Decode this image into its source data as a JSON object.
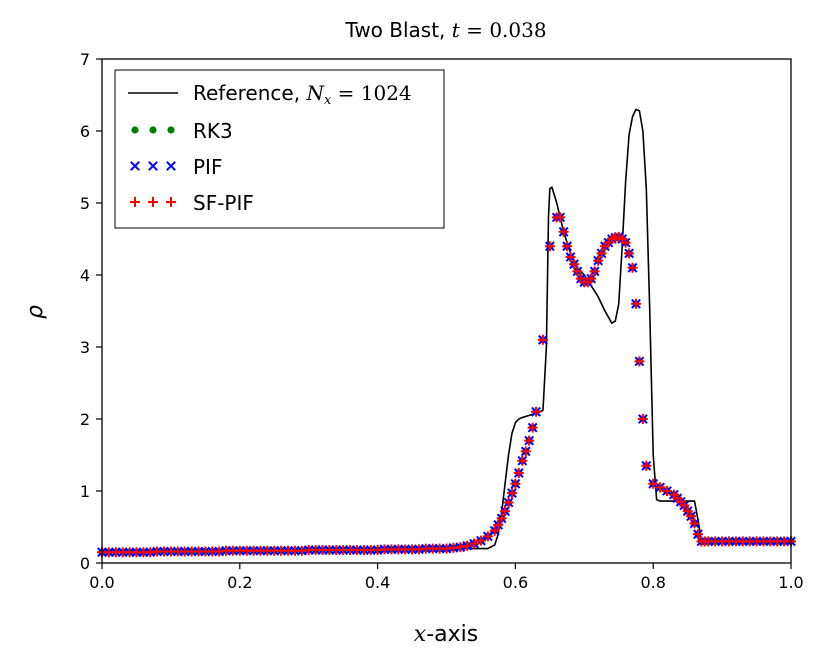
{
  "chart_data": {
    "type": "line",
    "title": {
      "prefix": "Two Blast, ",
      "var": "t",
      "eq": " = ",
      "value": "0.038"
    },
    "xlabel": {
      "var": "x",
      "rest": "-axis"
    },
    "ylabel": "ρ",
    "xlim": [
      0.0,
      1.0
    ],
    "ylim": [
      0,
      7
    ],
    "xticks": [
      0.0,
      0.2,
      0.4,
      0.6,
      0.8,
      1.0
    ],
    "xtick_labels": [
      "0.0",
      "0.2",
      "0.4",
      "0.6",
      "0.8",
      "1.0"
    ],
    "yticks": [
      0,
      1,
      2,
      3,
      4,
      5,
      6,
      7
    ],
    "ytick_labels": [
      "0",
      "1",
      "2",
      "3",
      "4",
      "5",
      "6",
      "7"
    ],
    "legend_position": "top-left",
    "legend": [
      {
        "label": "Reference, ",
        "sub_var": "N",
        "sub": "x",
        "eq": " = 1024",
        "style": "line",
        "color": "#000000"
      },
      {
        "label": "RK3",
        "style": "dots",
        "color": "#008000"
      },
      {
        "label": "PIF",
        "style": "x",
        "color": "#0000ff"
      },
      {
        "label": "SF-PIF",
        "style": "plus",
        "color": "#ff0000"
      }
    ],
    "reference": {
      "name": "Reference",
      "x": [
        0.0,
        0.4,
        0.5,
        0.54,
        0.56,
        0.57,
        0.575,
        0.58,
        0.585,
        0.59,
        0.595,
        0.6,
        0.605,
        0.61,
        0.62,
        0.63,
        0.64,
        0.645,
        0.648,
        0.65,
        0.653,
        0.66,
        0.67,
        0.68,
        0.69,
        0.7,
        0.71,
        0.72,
        0.73,
        0.74,
        0.745,
        0.75,
        0.755,
        0.76,
        0.765,
        0.77,
        0.775,
        0.78,
        0.785,
        0.79,
        0.795,
        0.8,
        0.805,
        0.81,
        0.83,
        0.85,
        0.86,
        0.865,
        0.87,
        0.88,
        0.9,
        1.0
      ],
      "y": [
        0.16,
        0.19,
        0.2,
        0.2,
        0.2,
        0.25,
        0.4,
        0.7,
        1.1,
        1.5,
        1.8,
        1.95,
        2.0,
        2.02,
        2.05,
        2.08,
        2.12,
        3.0,
        4.8,
        5.2,
        5.22,
        5.0,
        4.6,
        4.3,
        4.1,
        4.0,
        3.85,
        3.7,
        3.5,
        3.33,
        3.36,
        3.6,
        4.4,
        5.3,
        5.95,
        6.2,
        6.3,
        6.28,
        6.0,
        5.2,
        3.5,
        1.5,
        0.88,
        0.86,
        0.86,
        0.86,
        0.86,
        0.6,
        0.3,
        0.29,
        0.28,
        0.28
      ]
    },
    "markers": {
      "name": "RK3 / PIF / SF-PIF",
      "x": [
        0.0,
        0.01,
        0.02,
        0.03,
        0.04,
        0.05,
        0.06,
        0.07,
        0.08,
        0.09,
        0.1,
        0.11,
        0.12,
        0.13,
        0.14,
        0.15,
        0.16,
        0.17,
        0.18,
        0.19,
        0.2,
        0.21,
        0.22,
        0.23,
        0.24,
        0.25,
        0.26,
        0.27,
        0.28,
        0.29,
        0.3,
        0.31,
        0.32,
        0.33,
        0.34,
        0.35,
        0.36,
        0.37,
        0.38,
        0.39,
        0.4,
        0.41,
        0.42,
        0.43,
        0.44,
        0.45,
        0.46,
        0.47,
        0.48,
        0.49,
        0.5,
        0.51,
        0.52,
        0.53,
        0.54,
        0.55,
        0.56,
        0.57,
        0.575,
        0.58,
        0.585,
        0.59,
        0.595,
        0.6,
        0.605,
        0.61,
        0.615,
        0.62,
        0.625,
        0.63,
        0.64,
        0.65,
        0.66,
        0.665,
        0.67,
        0.675,
        0.68,
        0.685,
        0.69,
        0.695,
        0.7,
        0.705,
        0.71,
        0.715,
        0.72,
        0.725,
        0.73,
        0.735,
        0.74,
        0.745,
        0.75,
        0.755,
        0.76,
        0.765,
        0.77,
        0.775,
        0.78,
        0.785,
        0.79,
        0.8,
        0.81,
        0.82,
        0.83,
        0.835,
        0.84,
        0.845,
        0.85,
        0.855,
        0.86,
        0.865,
        0.87,
        0.875,
        0.88,
        0.89,
        0.9,
        0.91,
        0.92,
        0.93,
        0.94,
        0.95,
        0.96,
        0.97,
        0.98,
        0.99,
        1.0
      ],
      "y": [
        0.15,
        0.15,
        0.15,
        0.15,
        0.15,
        0.15,
        0.15,
        0.15,
        0.16,
        0.16,
        0.16,
        0.16,
        0.16,
        0.16,
        0.16,
        0.16,
        0.16,
        0.16,
        0.17,
        0.17,
        0.17,
        0.17,
        0.17,
        0.17,
        0.17,
        0.17,
        0.17,
        0.17,
        0.17,
        0.17,
        0.18,
        0.18,
        0.18,
        0.18,
        0.18,
        0.18,
        0.18,
        0.18,
        0.18,
        0.18,
        0.18,
        0.19,
        0.19,
        0.19,
        0.19,
        0.19,
        0.19,
        0.2,
        0.2,
        0.2,
        0.2,
        0.21,
        0.22,
        0.24,
        0.27,
        0.31,
        0.37,
        0.45,
        0.53,
        0.62,
        0.72,
        0.84,
        0.97,
        1.1,
        1.25,
        1.42,
        1.55,
        1.7,
        1.88,
        2.1,
        3.1,
        4.4,
        4.8,
        4.8,
        4.6,
        4.4,
        4.25,
        4.15,
        4.05,
        3.95,
        3.9,
        3.9,
        3.95,
        4.05,
        4.2,
        4.3,
        4.4,
        4.45,
        4.5,
        4.52,
        4.53,
        4.5,
        4.45,
        4.3,
        4.1,
        3.6,
        2.8,
        2.0,
        1.35,
        1.1,
        1.05,
        1.0,
        0.95,
        0.9,
        0.85,
        0.8,
        0.72,
        0.65,
        0.55,
        0.4,
        0.3,
        0.3,
        0.3,
        0.3,
        0.3,
        0.3,
        0.3,
        0.3,
        0.3,
        0.3,
        0.3,
        0.3,
        0.3,
        0.3,
        0.3
      ]
    },
    "colors": {
      "reference": "#000000",
      "rk3": "#008000",
      "pif": "#0000ff",
      "sf_pif": "#ff0000"
    }
  }
}
